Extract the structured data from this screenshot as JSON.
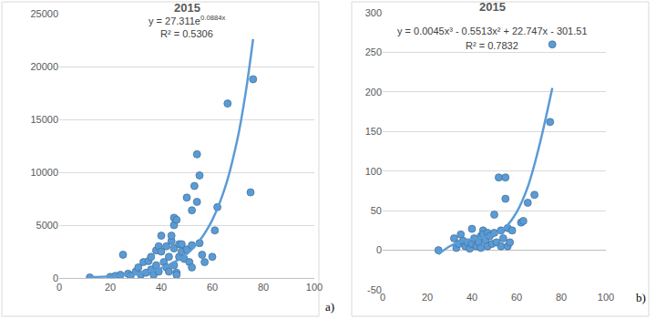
{
  "chart_data": [
    {
      "type": "scatter",
      "title": "2015",
      "panel_label": "a)",
      "equation": {
        "text": "y = 27.311e",
        "exponent": "0.0884x"
      },
      "r_squared": "R² = 0.5306",
      "x": [
        12,
        20,
        22,
        24,
        25,
        27,
        28,
        30,
        31,
        32,
        33,
        34,
        35,
        36,
        36,
        37,
        38,
        38,
        39,
        39,
        40,
        40,
        41,
        42,
        42,
        43,
        43,
        44,
        44,
        45,
        45,
        45,
        45,
        46,
        46,
        46,
        47,
        47,
        48,
        48,
        49,
        50,
        50,
        51,
        52,
        52,
        52,
        53,
        54,
        54,
        55,
        55,
        56,
        57,
        60,
        61,
        62,
        66,
        75,
        76
      ],
      "values": [
        50,
        100,
        200,
        300,
        2200,
        400,
        200,
        600,
        1000,
        300,
        1500,
        500,
        1600,
        800,
        2000,
        300,
        2600,
        1200,
        600,
        3000,
        4000,
        2500,
        1500,
        1000,
        3000,
        2000,
        600,
        3500,
        4000,
        5700,
        5000,
        2800,
        1200,
        5500,
        500,
        300,
        2000,
        3200,
        2500,
        3200,
        1800,
        7600,
        2700,
        1500,
        3100,
        6400,
        1000,
        8700,
        11700,
        7200,
        9700,
        3300,
        2200,
        1500,
        2000,
        4500,
        6700,
        16500,
        8100,
        18800
      ],
      "trendline": {
        "type": "line",
        "x": [
          12,
          20,
          30,
          40,
          50,
          55,
          60,
          65,
          70,
          73,
          76
        ],
        "values": [
          80,
          160,
          390,
          940,
          2270,
          3530,
          5490,
          8540,
          13300,
          17400,
          22600
        ]
      },
      "color": "#5b9bd5",
      "marker": "circle",
      "line_style": "solid",
      "xlim": [
        0,
        100
      ],
      "xticks": [
        0,
        20,
        40,
        60,
        80,
        100
      ],
      "ylim": [
        0,
        25000
      ],
      "yticks": [
        0,
        5000,
        10000,
        15000,
        20000,
        25000
      ],
      "grid": true
    },
    {
      "type": "scatter",
      "title": "2015",
      "panel_label": "b)",
      "equation": {
        "text": "y = 0.0045x³ - 0.5513x² + 22.747x - 301.51"
      },
      "r_squared": "R² = 0.7832",
      "x": [
        25,
        32,
        33,
        34,
        35,
        36,
        37,
        38,
        39,
        40,
        40,
        41,
        42,
        43,
        44,
        44,
        45,
        45,
        46,
        47,
        47,
        48,
        49,
        50,
        50,
        51,
        52,
        53,
        53,
        54,
        55,
        55,
        56,
        56,
        57,
        58,
        62,
        63,
        65,
        68,
        75,
        76
      ],
      "values": [
        0,
        15,
        3,
        8,
        20,
        12,
        5,
        10,
        2,
        27,
        8,
        15,
        5,
        10,
        3,
        18,
        25,
        20,
        12,
        5,
        22,
        18,
        8,
        22,
        45,
        10,
        92,
        25,
        5,
        15,
        92,
        65,
        28,
        5,
        10,
        25,
        35,
        37,
        60,
        70,
        162,
        260
      ],
      "trendline": {
        "type": "line",
        "x": [
          25,
          30,
          35,
          40,
          45,
          50,
          55,
          60,
          65,
          70,
          76
        ],
        "values": [
          -5,
          5,
          11,
          14,
          16,
          20,
          29,
          48,
          80,
          130,
          205
        ]
      },
      "color": "#5b9bd5",
      "marker": "circle",
      "line_style": "solid",
      "xlim": [
        0,
        100
      ],
      "xticks": [
        0,
        20,
        40,
        60,
        80,
        100
      ],
      "ylim": [
        -50,
        300
      ],
      "yticks": [
        -50,
        0,
        50,
        100,
        150,
        200,
        250,
        300
      ],
      "grid": true
    }
  ]
}
